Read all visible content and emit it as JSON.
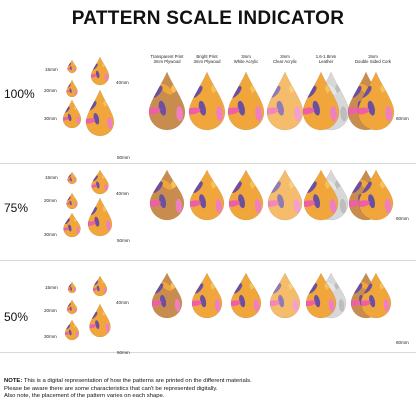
{
  "title": "PATTERN SCALE INDICATOR",
  "size_labels": {
    "s15": "15mm",
    "s20": "20mm",
    "s30": "30mm",
    "s40": "40mm",
    "s50": "50mm",
    "s60": "60mm"
  },
  "columns": [
    {
      "line1": "Transparent Print",
      "line2": "3mm Plywood"
    },
    {
      "line1": "Bright Print",
      "line2": "3mm Plywood"
    },
    {
      "line1": "3mm",
      "line2": "White Acrylic"
    },
    {
      "line1": "3mm",
      "line2": "Clear Acrylic"
    },
    {
      "line1": "1.6-1.8mm",
      "line2": "Leather"
    },
    {
      "line1": "3mm",
      "line2": "Double Sided Cork"
    }
  ],
  "sections": [
    {
      "percent": "100%"
    },
    {
      "percent": "75%"
    },
    {
      "percent": "50%"
    }
  ],
  "note": {
    "label": "NOTE:",
    "line1": " This is a digital representation of how the patterns are printed on the different materials.",
    "line2": "Please be aware there are some characteristics that can't be represented digitally.",
    "line3": "Also note, the placement of the pattern varies on each shape."
  },
  "colors": {
    "orange": "#f0a63a",
    "pink": "#f07fbf",
    "purple": "#6b4fa0",
    "wood": "#c98c4f",
    "leather": "#d8d8d8"
  }
}
